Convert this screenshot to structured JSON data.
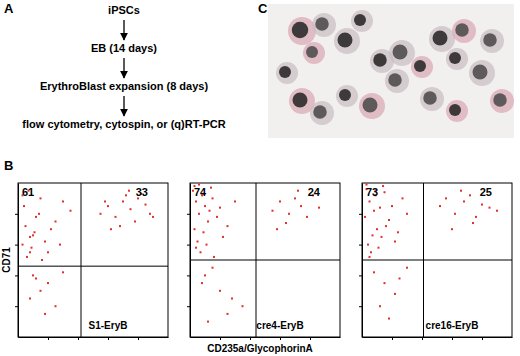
{
  "panel_labels": [
    "A",
    "B",
    "C"
  ],
  "flowchart": {
    "steps": [
      "iPSCs",
      "EB (14 days)",
      "ErythroBlast expansion (8 days)",
      "flow cytometry, cytospin, or (q)RT-PCR"
    ]
  },
  "shared_axes": {
    "x_label": "CD235a/GlycophorinA",
    "y_label": "CD71"
  },
  "chart_data": [
    {
      "type": "scatter",
      "sample": "S1-EryB",
      "color": "#e0302a",
      "marker": "square",
      "xlim": [
        0,
        100
      ],
      "ylim": [
        0,
        100
      ],
      "xticks": [
        20,
        40,
        60,
        80
      ],
      "yticks": [
        20,
        40,
        60,
        80
      ],
      "tick_labels": false,
      "gates": {
        "x": 42,
        "y": 46
      },
      "quadrant_values": [
        61,
        33
      ],
      "x": [
        3,
        5,
        8,
        4,
        10,
        12,
        15,
        7,
        18,
        22,
        6,
        9,
        14,
        25,
        30,
        11,
        3,
        20,
        28,
        35,
        16,
        8,
        55,
        60,
        65,
        70,
        72,
        75,
        78,
        80,
        85,
        88,
        62,
        68,
        74,
        90,
        58,
        82,
        10,
        15,
        20,
        25,
        8,
        30,
        18,
        12
      ],
      "values": [
        60,
        72,
        55,
        85,
        66,
        78,
        90,
        95,
        62,
        70,
        52,
        58,
        80,
        75,
        88,
        68,
        92,
        55,
        60,
        82,
        50,
        65,
        80,
        85,
        78,
        88,
        92,
        83,
        75,
        90,
        86,
        80,
        70,
        72,
        95,
        78,
        88,
        93,
        40,
        30,
        35,
        20,
        25,
        42,
        15,
        38
      ]
    },
    {
      "type": "scatter",
      "sample": "cre4-EryB",
      "color": "#e0302a",
      "marker": "square",
      "xlim": [
        0,
        100
      ],
      "ylim": [
        0,
        100
      ],
      "xticks": [
        20,
        40,
        60,
        80
      ],
      "yticks": [
        20,
        40,
        60,
        80
      ],
      "tick_labels": false,
      "gates": {
        "x": 44,
        "y": 50
      },
      "quadrant_values": [
        74,
        24
      ],
      "x": [
        2,
        4,
        6,
        3,
        8,
        10,
        12,
        5,
        15,
        18,
        7,
        9,
        14,
        20,
        25,
        3,
        11,
        22,
        30,
        6,
        16,
        9,
        4,
        13,
        55,
        60,
        66,
        70,
        74,
        78,
        82,
        86,
        64,
        72,
        58,
        10,
        20,
        15,
        28,
        8,
        35,
        25,
        12
      ],
      "values": [
        95,
        88,
        80,
        70,
        92,
        85,
        75,
        62,
        90,
        78,
        55,
        68,
        97,
        84,
        72,
        98,
        60,
        65,
        88,
        99,
        52,
        93,
        58,
        82,
        82,
        88,
        80,
        90,
        85,
        78,
        92,
        84,
        74,
        95,
        70,
        40,
        30,
        45,
        25,
        35,
        20,
        15,
        10
      ]
    },
    {
      "type": "scatter",
      "sample": "cre16-EryB",
      "color": "#e0302a",
      "marker": "square",
      "xlim": [
        0,
        100
      ],
      "ylim": [
        0,
        100
      ],
      "xticks": [
        20,
        40,
        60,
        80
      ],
      "yticks": [
        20,
        40,
        60,
        80
      ],
      "tick_labels": false,
      "gates": {
        "x": 41,
        "y": 50
      },
      "quadrant_values": [
        73,
        25
      ],
      "x": [
        3,
        5,
        2,
        7,
        9,
        12,
        4,
        15,
        18,
        6,
        10,
        14,
        20,
        24,
        8,
        11,
        27,
        16,
        3,
        22,
        5,
        13,
        30,
        9,
        52,
        56,
        62,
        68,
        72,
        76,
        80,
        85,
        60,
        66,
        74,
        90,
        8,
        15,
        22,
        12,
        30,
        18,
        25
      ],
      "values": [
        96,
        88,
        78,
        66,
        92,
        84,
        60,
        94,
        76,
        55,
        70,
        98,
        85,
        68,
        82,
        58,
        90,
        72,
        99,
        62,
        52,
        65,
        80,
        95,
        85,
        90,
        80,
        88,
        92,
        78,
        86,
        84,
        70,
        95,
        74,
        82,
        42,
        35,
        28,
        20,
        45,
        12,
        38
      ]
    }
  ]
}
